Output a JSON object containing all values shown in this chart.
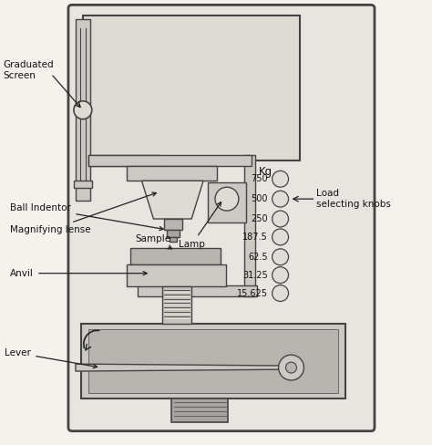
{
  "bg_color": "#f5f2ee",
  "body_fill": "#e8e5e0",
  "screen_fill": "#dedad4",
  "mid_fill": "#ccc9c4",
  "dark_fill": "#b8b5b0",
  "darker_fill": "#a8a5a0",
  "screw_fill": "#c5c2bc",
  "border": "#444444",
  "labels": {
    "graduated_screen": "Graduated\nScreen",
    "ball_indentor": "Ball Indentor",
    "magnifying_lense": "Magnifying lense",
    "lamp": "Lamp",
    "sample": "Sample",
    "anvil": "Anvil",
    "lever": "Lever",
    "load_selecting": "Load\nselecting knobs",
    "kg": "Kg"
  },
  "kg_values": [
    "750",
    "500",
    "250",
    "187.5",
    "62.5",
    "31.25",
    "15.625"
  ],
  "font_size": 7.5,
  "arrow_color": "#222222"
}
